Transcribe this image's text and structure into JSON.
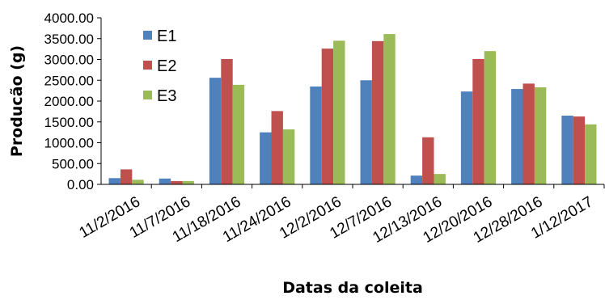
{
  "chart_data": {
    "type": "bar",
    "title": "",
    "xlabel": "Datas da coleita",
    "ylabel": "Producão (g)",
    "ylim": [
      0,
      4000
    ],
    "yticks": [
      "0.00",
      "500.00",
      "1000.00",
      "1500.00",
      "2000.00",
      "2500.00",
      "3000.00",
      "3500.00",
      "4000.00"
    ],
    "grid": false,
    "legend_position": "top-left",
    "categories": [
      "11/2/2016",
      "11/7/2016",
      "11/18/2016",
      "11/24/2016",
      "12/2/2016",
      "12/7/2016",
      "12/13/2016",
      "12/20/2016",
      "12/28/2016",
      "1/12/2017"
    ],
    "series": [
      {
        "name": "E1",
        "color": "#4F81BD",
        "values": [
          150,
          140,
          2560,
          1250,
          2350,
          2500,
          210,
          2230,
          2290,
          1650
        ]
      },
      {
        "name": "E2",
        "color": "#C0504D",
        "values": [
          360,
          80,
          3010,
          1760,
          3260,
          3440,
          1130,
          3010,
          2420,
          1630
        ]
      },
      {
        "name": "E3",
        "color": "#9BBB59",
        "values": [
          110,
          80,
          2390,
          1320,
          3450,
          3610,
          250,
          3200,
          2330,
          1440
        ]
      }
    ]
  }
}
